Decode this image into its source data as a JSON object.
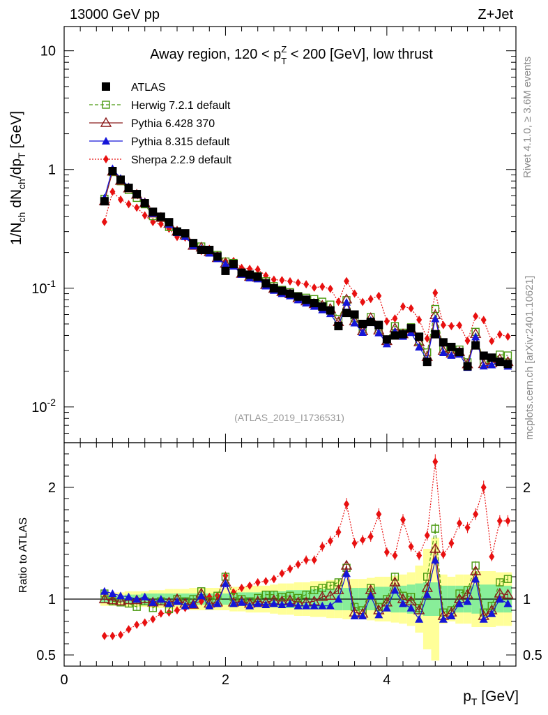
{
  "header": {
    "left": "13000 GeV pp",
    "right": "Z+Jet"
  },
  "side": {
    "rivet": "Rivet 4.1.0, ≥ 3.6M events",
    "mcplots": "mcplots.cern.ch [arXiv:2401.10621]"
  },
  "plot_title": {
    "text_pre": "Away region, 120 < p",
    "sup": "Z",
    "sub": "T",
    "text_post": " < 200 [GeV], low thrust"
  },
  "ylabel_main": {
    "p1": "1/N",
    "s1": "ch",
    "p2": " dN",
    "s2": "ch",
    "p3": "/dp",
    "s3": "T",
    "p4": " [GeV]"
  },
  "ylabel_ratio": "Ratio to ATLAS",
  "xlabel": {
    "p": "p",
    "sub": "T",
    "rest": " [GeV]"
  },
  "watermark": "(ATLAS_2019_I1736531)",
  "legend": [
    {
      "label": "ATLAS",
      "color": "#000000",
      "marker": "square",
      "line": "none"
    },
    {
      "label": "Herwig 7.2.1 default",
      "color": "#4a9a10",
      "marker": "open-square",
      "line": "dashed"
    },
    {
      "label": "Pythia 6.428 370",
      "color": "#8b1a1a",
      "marker": "open-triangle",
      "line": "solid"
    },
    {
      "label": "Pythia 8.315 default",
      "color": "#1515d8",
      "marker": "filled-triangle",
      "line": "solid"
    },
    {
      "label": "Sherpa 2.2.9 default",
      "color": "#e81010",
      "marker": "diamond",
      "line": "dotted"
    }
  ],
  "chart_data": {
    "type": "line",
    "title": "Away region, 120 < pT^Z < 200 [GeV], low thrust",
    "xlabel": "pT [GeV]",
    "ylabel": "1/Nch dNch/dpT [GeV]",
    "yscale": "log",
    "xlim": [
      0,
      5.6
    ],
    "ylim": [
      0.005,
      16
    ],
    "x_ticks": [
      "0",
      "2",
      "4"
    ],
    "y_ticks": [
      "10^-2",
      "10^-1",
      "1",
      "10"
    ],
    "ratio_ylabel": "Ratio to ATLAS",
    "ratio_ylim": [
      0.4,
      2.4
    ],
    "ratio_ticks": [
      "0.5",
      "1",
      "2"
    ],
    "x": [
      0.5,
      0.6,
      0.7,
      0.8,
      0.9,
      1.0,
      1.1,
      1.2,
      1.3,
      1.4,
      1.5,
      1.6,
      1.7,
      1.8,
      1.9,
      2.0,
      2.1,
      2.2,
      2.3,
      2.4,
      2.5,
      2.6,
      2.7,
      2.8,
      2.9,
      3.0,
      3.1,
      3.2,
      3.3,
      3.4,
      3.5,
      3.6,
      3.7,
      3.8,
      3.9,
      4.0,
      4.1,
      4.2,
      4.3,
      4.4,
      4.5,
      4.6,
      4.7,
      4.8,
      4.9,
      5.0,
      5.1,
      5.2,
      5.3,
      5.4,
      5.5
    ],
    "series": [
      {
        "name": "ATLAS",
        "values": [
          0.54,
          0.97,
          0.82,
          0.7,
          0.62,
          0.52,
          0.44,
          0.4,
          0.36,
          0.3,
          0.29,
          0.24,
          0.21,
          0.21,
          0.185,
          0.14,
          0.16,
          0.135,
          0.13,
          0.125,
          0.11,
          0.1,
          0.095,
          0.09,
          0.085,
          0.08,
          0.075,
          0.07,
          0.065,
          0.048,
          0.062,
          0.06,
          0.05,
          0.052,
          0.049,
          0.037,
          0.04,
          0.041,
          0.046,
          0.039,
          0.024,
          0.041,
          0.035,
          0.032,
          0.029,
          0.022,
          0.033,
          0.027,
          0.026,
          0.024,
          0.023
        ]
      },
      {
        "name": "Herwig 7.2.1 default",
        "ratio": [
          1.05,
          0.98,
          0.97,
          0.96,
          0.93,
          0.98,
          0.92,
          0.98,
          0.91,
          1.0,
          0.98,
          1.0,
          1.07,
          0.98,
          1.03,
          1.2,
          1.02,
          1.0,
          0.98,
          1.01,
          1.04,
          1.04,
          1.02,
          1.03,
          1.01,
          1.04,
          1.08,
          1.1,
          1.12,
          1.15,
          1.28,
          0.93,
          0.9,
          1.1,
          0.93,
          1.0,
          1.2,
          1.03,
          1.02,
          0.92,
          1.2,
          1.63,
          0.88,
          0.9,
          1.05,
          1.08,
          1.3,
          0.88,
          0.94,
          1.15,
          1.18
        ]
      },
      {
        "name": "Pythia 6.428 370",
        "ratio": [
          1.0,
          0.99,
          0.98,
          0.99,
          0.99,
          1.0,
          0.97,
          0.98,
          0.97,
          1.0,
          0.96,
          0.95,
          1.05,
          0.96,
          0.97,
          1.15,
          0.97,
          0.98,
          0.96,
          0.98,
          0.97,
          0.99,
          0.98,
          0.99,
          0.97,
          0.97,
          0.98,
          1.02,
          1.03,
          1.08,
          1.3,
          0.88,
          0.87,
          1.08,
          0.9,
          0.97,
          1.15,
          1.0,
          0.98,
          0.9,
          1.1,
          1.45,
          0.85,
          0.88,
          1.0,
          1.04,
          1.25,
          0.85,
          0.9,
          1.05,
          1.04
        ]
      },
      {
        "name": "Pythia 8.315 default",
        "ratio": [
          1.07,
          1.05,
          1.03,
          1.02,
          1.0,
          1.02,
          0.97,
          1.0,
          0.96,
          0.98,
          0.94,
          0.95,
          1.03,
          0.94,
          0.96,
          1.14,
          0.96,
          0.97,
          0.94,
          0.96,
          0.95,
          0.96,
          0.95,
          0.96,
          0.94,
          0.94,
          0.94,
          0.94,
          0.94,
          1.0,
          1.23,
          0.85,
          0.85,
          1.03,
          0.86,
          0.92,
          1.08,
          0.96,
          0.92,
          0.82,
          1.04,
          1.35,
          0.82,
          0.85,
          0.96,
          0.98,
          1.18,
          0.82,
          0.87,
          1.0,
          0.96
        ]
      },
      {
        "name": "Sherpa 2.2.9 default",
        "ratio": [
          0.67,
          0.67,
          0.68,
          0.73,
          0.77,
          0.79,
          0.82,
          0.87,
          0.88,
          0.9,
          0.92,
          0.96,
          0.98,
          1.02,
          1.03,
          1.21,
          1.06,
          1.1,
          1.12,
          1.15,
          1.16,
          1.18,
          1.23,
          1.27,
          1.31,
          1.35,
          1.35,
          1.47,
          1.52,
          1.6,
          1.85,
          1.5,
          1.53,
          1.56,
          1.76,
          1.42,
          1.39,
          1.71,
          1.47,
          1.39,
          1.57,
          2.23,
          1.4,
          1.5,
          1.68,
          1.64,
          1.76,
          2.0,
          1.38,
          1.7,
          1.7
        ]
      }
    ],
    "bands": {
      "stat_half_width": [
        0.03,
        0.03,
        0.03,
        0.04,
        0.04,
        0.05,
        0.05,
        0.05,
        0.05,
        0.05,
        0.05,
        0.05,
        0.05,
        0.05,
        0.05,
        0.05,
        0.06,
        0.06,
        0.06,
        0.06,
        0.07,
        0.07,
        0.07,
        0.08,
        0.08,
        0.08,
        0.09,
        0.09,
        0.09,
        0.1,
        0.1,
        0.1,
        0.1,
        0.1,
        0.11,
        0.11,
        0.12,
        0.12,
        0.13,
        0.14,
        0.15,
        0.15,
        0.12,
        0.12,
        0.12,
        0.12,
        0.13,
        0.13,
        0.13,
        0.12,
        0.12
      ],
      "total_half_width": [
        0.06,
        0.06,
        0.06,
        0.07,
        0.07,
        0.07,
        0.08,
        0.08,
        0.09,
        0.09,
        0.09,
        0.1,
        0.1,
        0.1,
        0.1,
        0.1,
        0.11,
        0.11,
        0.12,
        0.12,
        0.12,
        0.13,
        0.14,
        0.14,
        0.15,
        0.15,
        0.16,
        0.16,
        0.17,
        0.17,
        0.18,
        0.18,
        0.18,
        0.19,
        0.2,
        0.2,
        0.21,
        0.22,
        0.24,
        0.3,
        0.45,
        0.55,
        0.22,
        0.2,
        0.22,
        0.22,
        0.25,
        0.25,
        0.25,
        0.24,
        0.24
      ]
    }
  }
}
